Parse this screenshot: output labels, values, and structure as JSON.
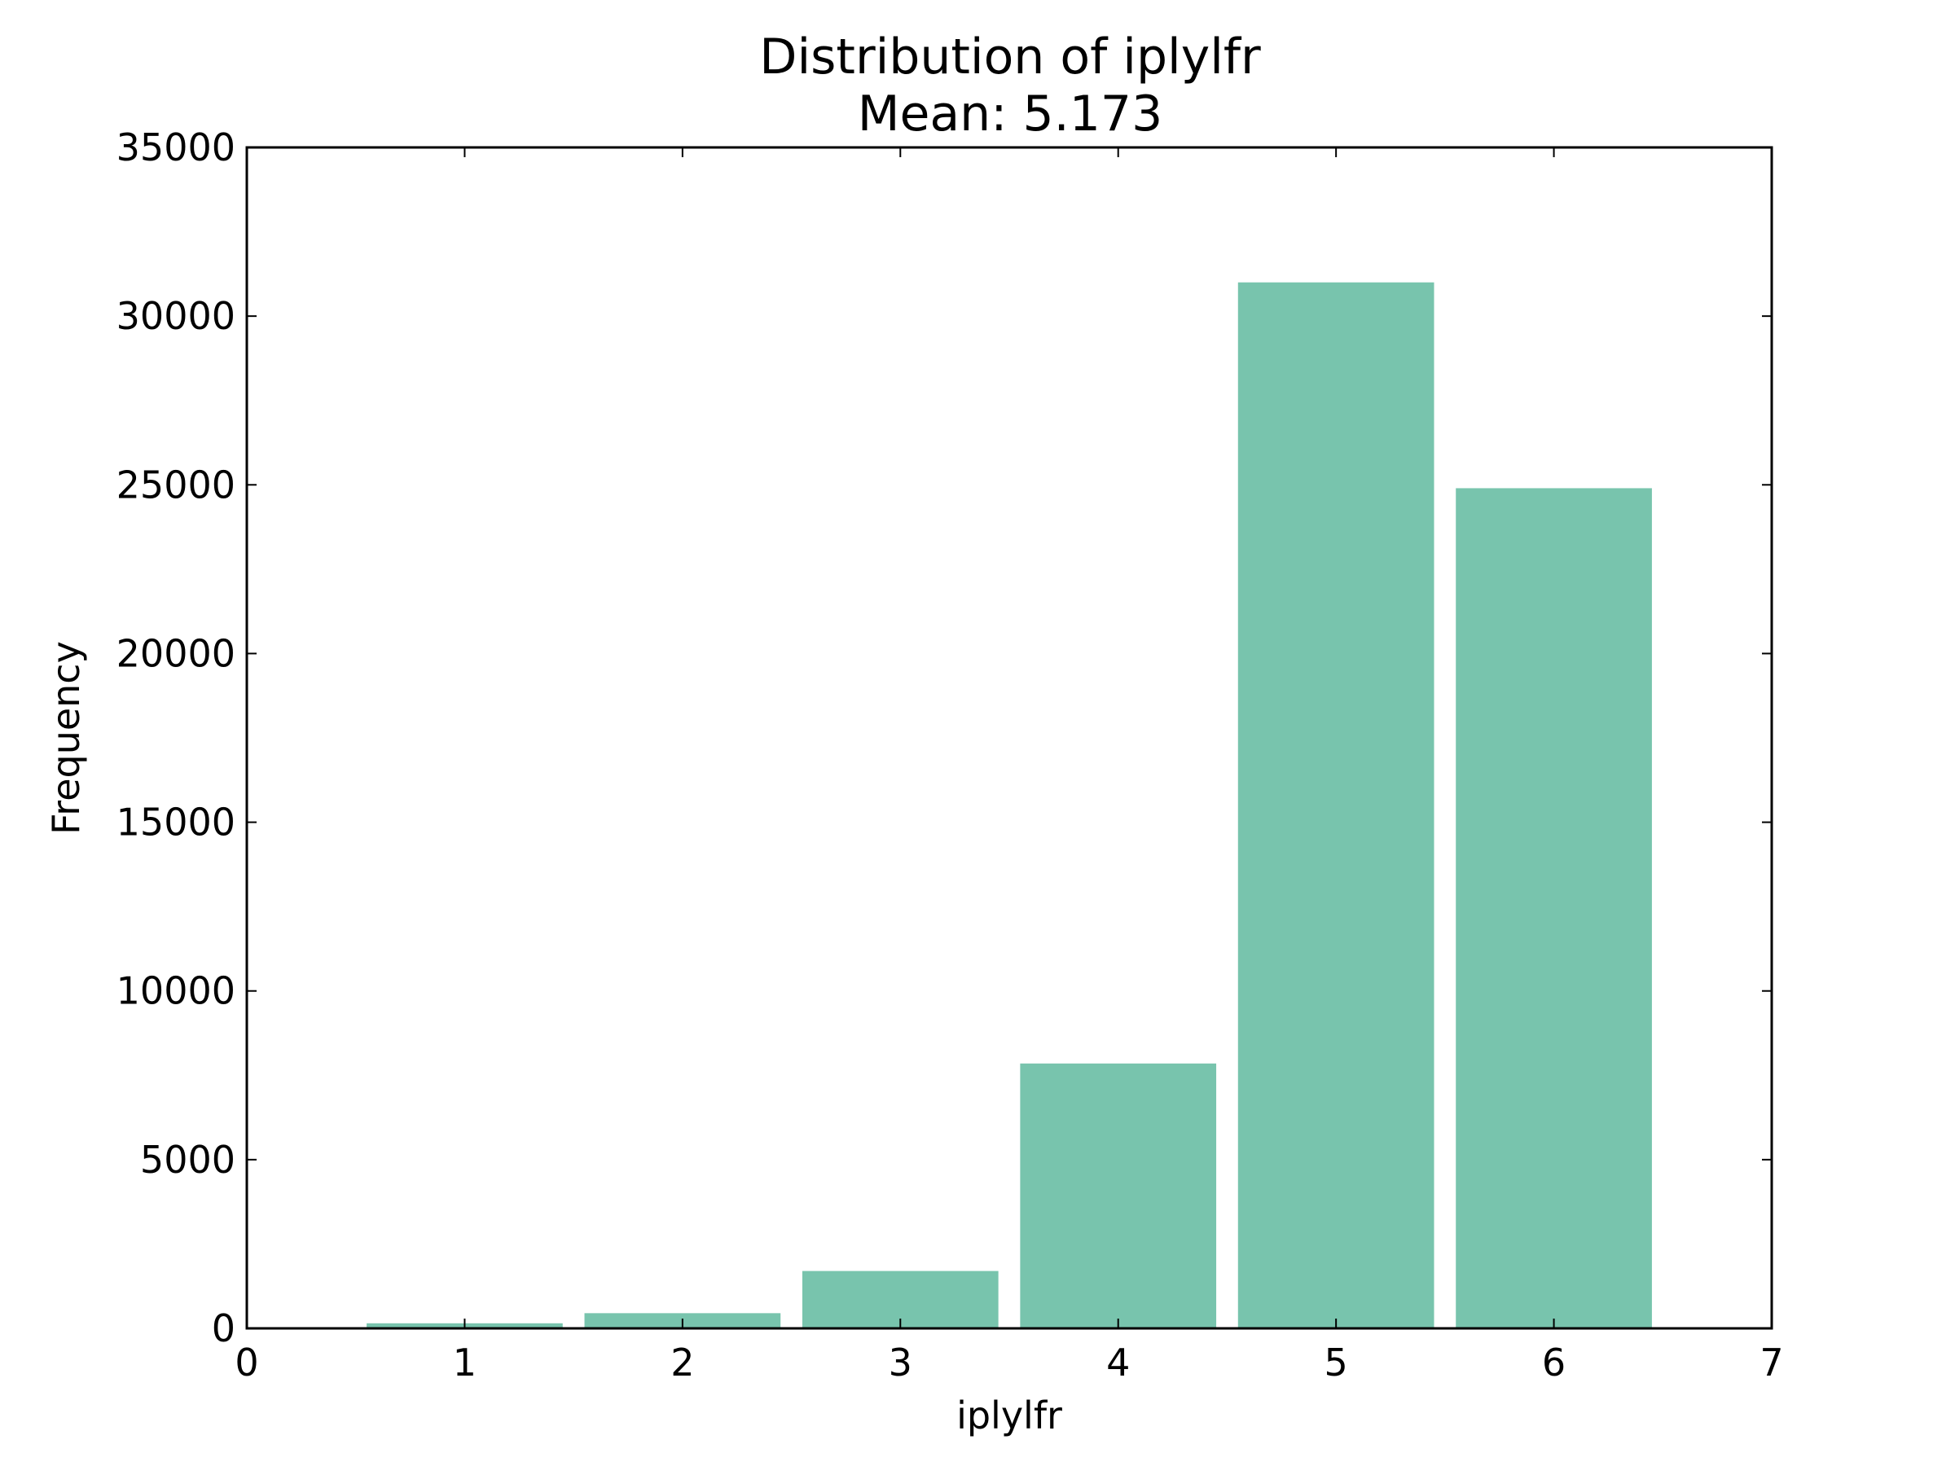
{
  "chart_data": {
    "type": "bar",
    "title": "Distribution of iplylfr",
    "subtitle": "Mean: 5.173",
    "xlabel": "iplylfr",
    "ylabel": "Frequency",
    "categories": [
      1,
      2,
      3,
      4,
      5,
      6
    ],
    "values": [
      150,
      450,
      1700,
      7850,
      31000,
      24900
    ],
    "bar_width": 0.9,
    "xlim": [
      0,
      7
    ],
    "ylim": [
      0,
      35000
    ],
    "xticks": [
      0,
      1,
      2,
      3,
      4,
      5,
      6,
      7
    ],
    "yticks": [
      0,
      5000,
      10000,
      15000,
      20000,
      25000,
      30000,
      35000
    ],
    "grid": false,
    "bar_color": "#78c4ad"
  }
}
